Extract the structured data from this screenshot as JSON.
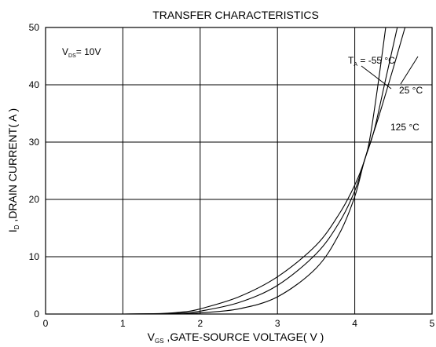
{
  "chart_data": {
    "type": "line",
    "title": "TRANSFER CHARACTERISTICS",
    "xlabel": {
      "main": "V",
      "sub": "GS",
      "rest": " ,GATE-SOURCE VOLTAGE( V )"
    },
    "ylabel": {
      "main": "I",
      "sub": "D",
      "rest": " ,DRAIN CURRENT( A )"
    },
    "xlim": [
      0,
      5
    ],
    "ylim": [
      0,
      50
    ],
    "xticks": [
      0,
      1,
      2,
      3,
      4,
      5
    ],
    "yticks": [
      0,
      10,
      20,
      30,
      40,
      50
    ],
    "grid": true,
    "annotation_vds": {
      "main": "V",
      "sub": "DS",
      "rest": "= 10V"
    },
    "series": [
      {
        "name": "T_A = -55 °C",
        "label": {
          "main": "T",
          "sub": "A",
          "rest": " = -55 °C"
        },
        "x": [
          1.0,
          1.5,
          1.8,
          2.0,
          2.5,
          3.0,
          3.5,
          3.8,
          4.0,
          4.13,
          4.2,
          4.3,
          4.4
        ],
        "y": [
          0,
          0.1,
          0.4,
          0.9,
          3.0,
          6.5,
          12.0,
          17.5,
          22.5,
          27.0,
          31.0,
          40.0,
          50.0
        ]
      },
      {
        "name": "25 °C",
        "label": {
          "main": "25 °C",
          "sub": "",
          "rest": ""
        },
        "x": [
          1.0,
          1.5,
          1.8,
          2.0,
          2.5,
          3.0,
          3.5,
          3.8,
          4.0,
          4.13,
          4.25,
          4.4,
          4.55
        ],
        "y": [
          0,
          0.05,
          0.2,
          0.5,
          2.0,
          5.0,
          10.5,
          16.0,
          21.5,
          27.0,
          32.0,
          41.0,
          50.0
        ]
      },
      {
        "name": "125 °C",
        "label": {
          "main": "125 °C",
          "sub": "",
          "rest": ""
        },
        "x": [
          1.0,
          1.5,
          1.8,
          2.0,
          2.5,
          3.0,
          3.5,
          3.8,
          4.0,
          4.13,
          4.3,
          4.5,
          4.65
        ],
        "y": [
          0,
          0.02,
          0.05,
          0.2,
          0.9,
          3.0,
          8.0,
          14.0,
          20.5,
          27.0,
          34.0,
          43.0,
          50.0
        ]
      }
    ]
  }
}
